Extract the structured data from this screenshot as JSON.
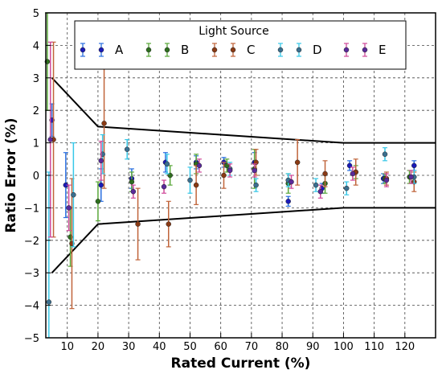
{
  "chart_data": {
    "type": "scatter",
    "title": "",
    "xlabel": "Rated Current (%)",
    "ylabel": "Ratio Error (%)",
    "xlim": [
      3,
      130
    ],
    "ylim": [
      -5,
      5
    ],
    "x_ticks": [
      10,
      20,
      30,
      40,
      50,
      60,
      70,
      80,
      90,
      100,
      110,
      120
    ],
    "y_ticks": [
      -5,
      -4,
      -3,
      -2,
      -1,
      0,
      1,
      2,
      3,
      4,
      5
    ],
    "grid": true,
    "legend": {
      "title": "Light Source",
      "placement": "top"
    },
    "limit_lines": {
      "upper": {
        "x": [
          5,
          20,
          100,
          130
        ],
        "y": [
          3,
          1.5,
          1,
          1
        ]
      },
      "lower": {
        "x": [
          5,
          20,
          100,
          130
        ],
        "y": [
          -3,
          -1.5,
          -1,
          -1
        ]
      }
    },
    "series": [
      {
        "name": "A",
        "color": "#1a1ab8",
        "err_color": "#2a6fe0",
        "points": [
          {
            "x": 5,
            "y": 1.7,
            "err": 0.5
          },
          {
            "x": 9.5,
            "y": -0.3,
            "err": 1.0
          },
          {
            "x": 21,
            "y": -0.3,
            "err": 0.5
          },
          {
            "x": 31,
            "y": -0.1,
            "err": 0.3
          },
          {
            "x": 42,
            "y": 0.4,
            "err": 0.3
          },
          {
            "x": 52,
            "y": 0.4,
            "err": 0.2
          },
          {
            "x": 61,
            "y": 0.4,
            "err": 0.15
          },
          {
            "x": 71,
            "y": 0.4,
            "err": 0.3
          },
          {
            "x": 82,
            "y": -0.8,
            "err": 0.15
          },
          {
            "x": 93,
            "y": -0.4,
            "err": 0.15
          },
          {
            "x": 102,
            "y": 0.3,
            "err": 0.15
          },
          {
            "x": 113,
            "y": -0.1,
            "err": 0.15
          },
          {
            "x": 123,
            "y": 0.3,
            "err": 0.15
          }
        ]
      },
      {
        "name": "B",
        "color": "#2e6e1f",
        "err_color": "#5aa83a",
        "points": [
          {
            "x": 3.5,
            "y": 3.5,
            "err": 1.5
          },
          {
            "x": 11,
            "y": -1.9,
            "err": 0.9
          },
          {
            "x": 20,
            "y": -0.8,
            "err": 0.6
          },
          {
            "x": 31,
            "y": -0.2,
            "err": 0.3
          },
          {
            "x": 43.5,
            "y": 0.0,
            "err": 0.3
          },
          {
            "x": 52,
            "y": 0.35,
            "err": 0.3
          },
          {
            "x": 62,
            "y": 0.3,
            "err": 0.2
          },
          {
            "x": 71,
            "y": 0.2,
            "err": 0.6
          },
          {
            "x": 82,
            "y": -0.25,
            "err": 0.3
          },
          {
            "x": 94,
            "y": -0.25,
            "err": 0.3
          },
          {
            "x": 104,
            "y": 0.1,
            "err": 0.2
          },
          {
            "x": 113.5,
            "y": -0.1,
            "err": 0.15
          },
          {
            "x": 121.5,
            "y": -0.05,
            "err": 0.2
          }
        ]
      },
      {
        "name": "C",
        "color": "#8a3a14",
        "err_color": "#c0643a",
        "points": [
          {
            "x": 5.5,
            "y": 1.1,
            "err": 3.0
          },
          {
            "x": 11.5,
            "y": -2.1,
            "err": 2.0
          },
          {
            "x": 22,
            "y": 1.6,
            "err": 2.0
          },
          {
            "x": 33,
            "y": -1.5,
            "err": 1.1
          },
          {
            "x": 43,
            "y": -1.5,
            "err": 0.7
          },
          {
            "x": 52,
            "y": -0.3,
            "err": 0.6
          },
          {
            "x": 61,
            "y": 0.0,
            "err": 0.4
          },
          {
            "x": 71.5,
            "y": 0.4,
            "err": 0.4
          },
          {
            "x": 85,
            "y": 0.4,
            "err": 0.7
          },
          {
            "x": 94,
            "y": 0.05,
            "err": 0.4
          },
          {
            "x": 104,
            "y": 0.1,
            "err": 0.4
          },
          {
            "x": 114,
            "y": -0.1,
            "err": 0.2
          },
          {
            "x": 123,
            "y": -0.2,
            "err": 0.3
          }
        ]
      },
      {
        "name": "D",
        "color": "#3b6f8f",
        "err_color": "#38c8e8",
        "points": [
          {
            "x": 4,
            "y": -3.9,
            "err": 4.0
          },
          {
            "x": 12,
            "y": -0.6,
            "err": 1.6
          },
          {
            "x": 21.5,
            "y": 0.65,
            "err": 0.6
          },
          {
            "x": 29.5,
            "y": 0.8,
            "err": 0.3
          },
          {
            "x": 42.5,
            "y": 0.35,
            "err": 0.3
          },
          {
            "x": 50,
            "y": -0.15,
            "err": 0.4
          },
          {
            "x": 63,
            "y": 0.2,
            "err": 0.2
          },
          {
            "x": 71.5,
            "y": -0.3,
            "err": 0.2
          },
          {
            "x": 82,
            "y": -0.15,
            "err": 0.2
          },
          {
            "x": 91,
            "y": -0.3,
            "err": 0.2
          },
          {
            "x": 101,
            "y": -0.4,
            "err": 0.2
          },
          {
            "x": 113.5,
            "y": 0.65,
            "err": 0.2
          },
          {
            "x": 123,
            "y": -0.05,
            "err": 0.2
          }
        ]
      },
      {
        "name": "E",
        "color": "#5a2a9a",
        "err_color": "#d04a9a",
        "points": [
          {
            "x": 4.5,
            "y": 1.1,
            "err": 3.0
          },
          {
            "x": 10.5,
            "y": -1.0,
            "err": 0.7
          },
          {
            "x": 21,
            "y": 0.45,
            "err": 0.6
          },
          {
            "x": 31.5,
            "y": -0.5,
            "err": 0.2
          },
          {
            "x": 41.5,
            "y": -0.35,
            "err": 0.2
          },
          {
            "x": 53,
            "y": 0.3,
            "err": 0.2
          },
          {
            "x": 63,
            "y": 0.15,
            "err": 0.2
          },
          {
            "x": 71,
            "y": 0.15,
            "err": 0.2
          },
          {
            "x": 83,
            "y": -0.2,
            "err": 0.2
          },
          {
            "x": 92.5,
            "y": -0.5,
            "err": 0.2
          },
          {
            "x": 103,
            "y": 0.05,
            "err": 0.2
          },
          {
            "x": 114,
            "y": -0.15,
            "err": 0.2
          },
          {
            "x": 122,
            "y": -0.05,
            "err": 0.2
          }
        ]
      }
    ]
  }
}
